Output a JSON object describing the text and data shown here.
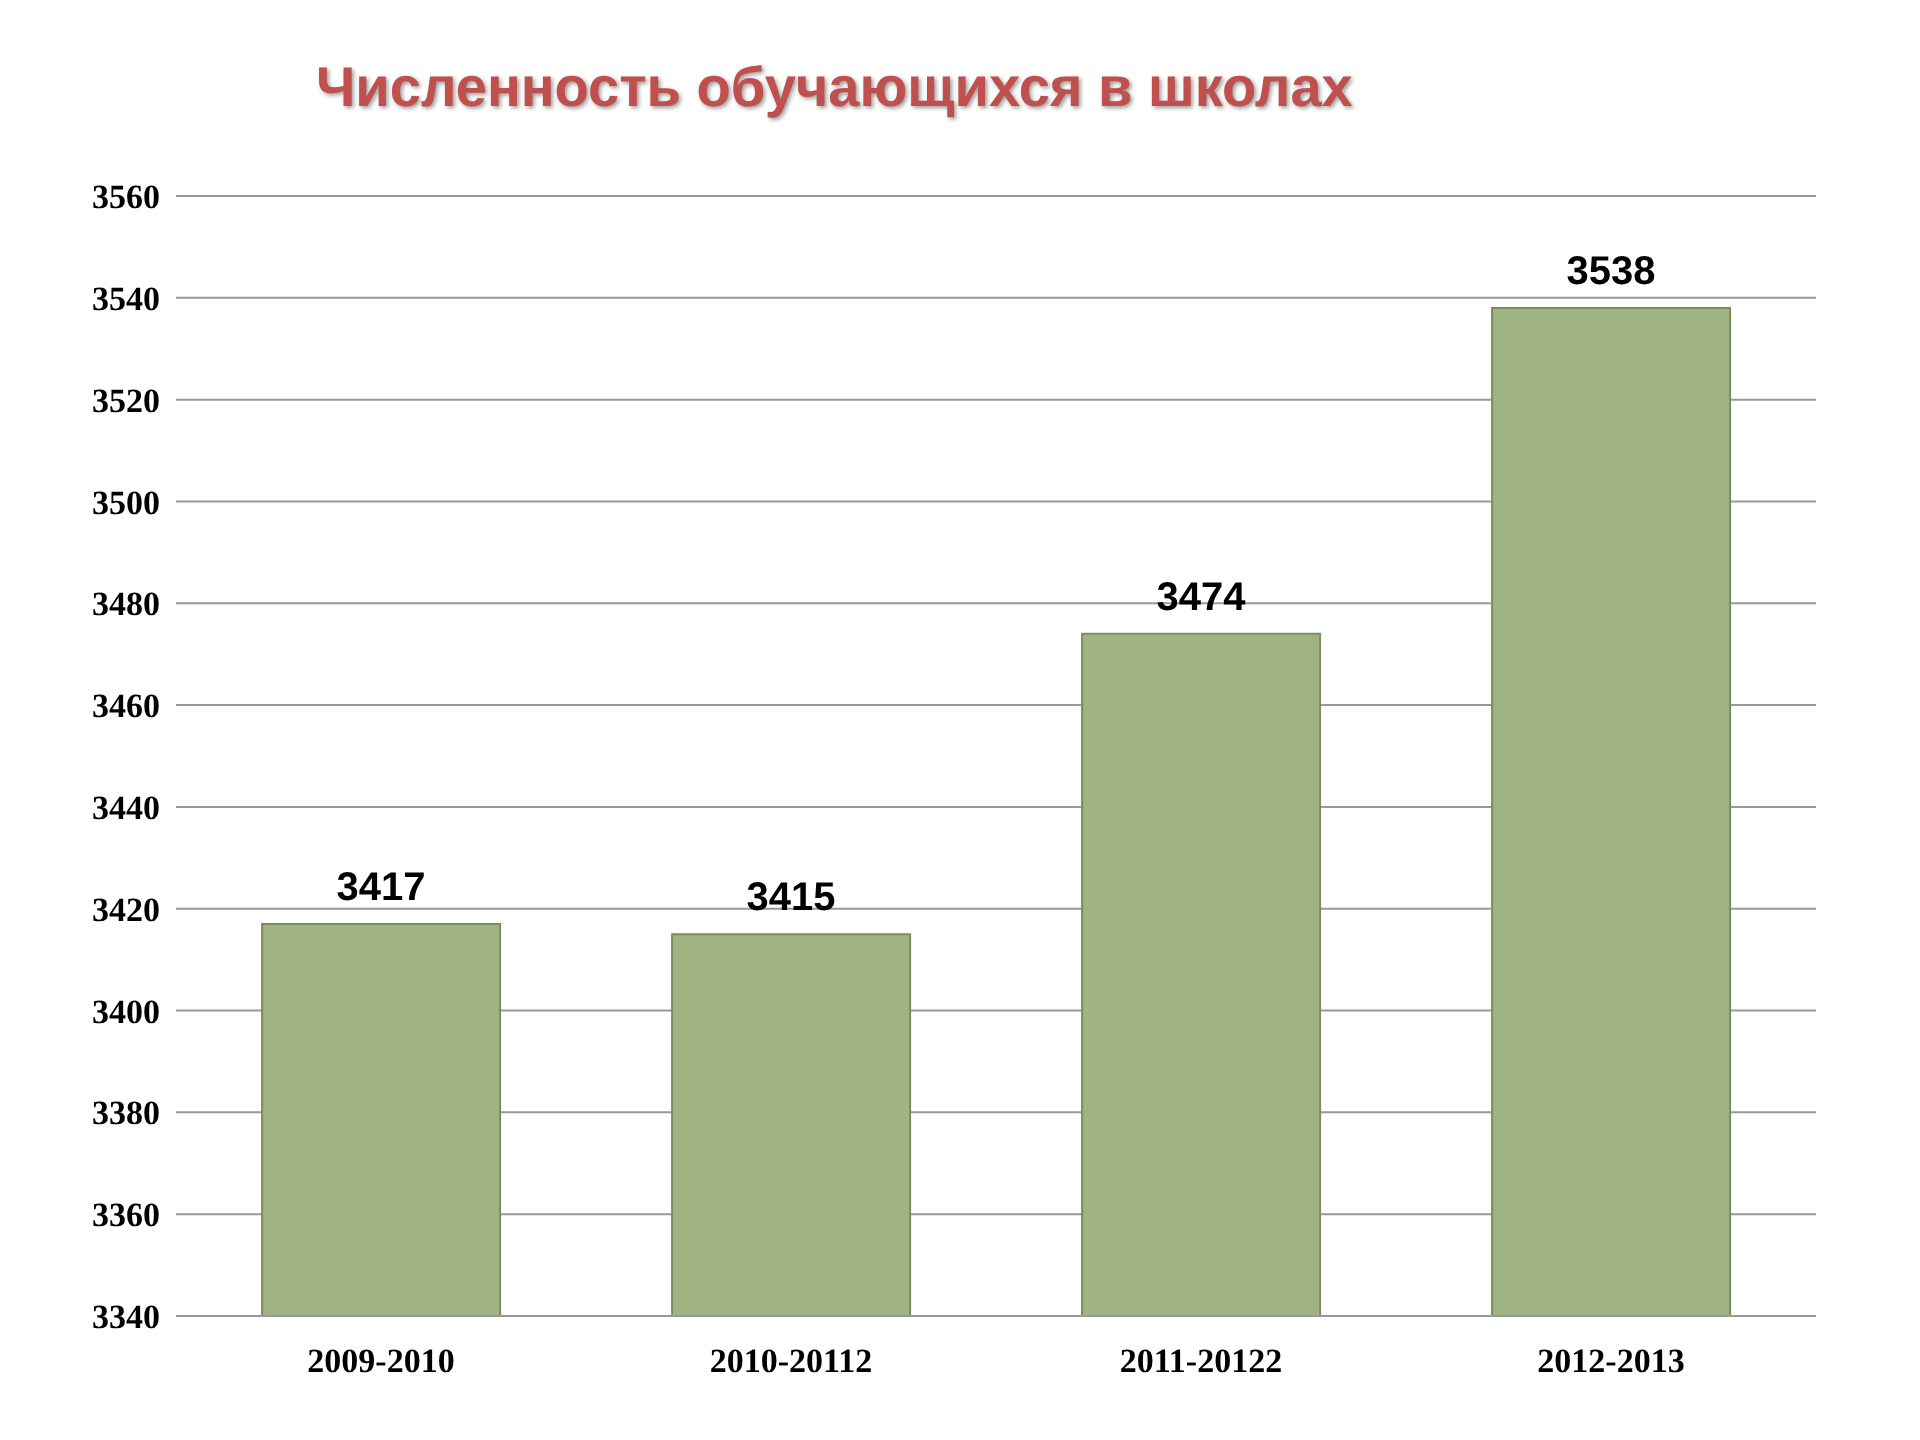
{
  "chart_data": {
    "type": "bar",
    "title": "Численность обучающихся в школах",
    "categories": [
      "2009-2010",
      "2010-20112",
      "2011-20122",
      "2012-2013"
    ],
    "values": [
      3417,
      3415,
      3474,
      3538
    ],
    "color": "#9fb482",
    "ylim": [
      3340,
      3560
    ],
    "yticks": [
      3340,
      3360,
      3380,
      3400,
      3420,
      3440,
      3460,
      3480,
      3500,
      3520,
      3540,
      3560
    ],
    "grid": "y",
    "data_labels": true
  }
}
